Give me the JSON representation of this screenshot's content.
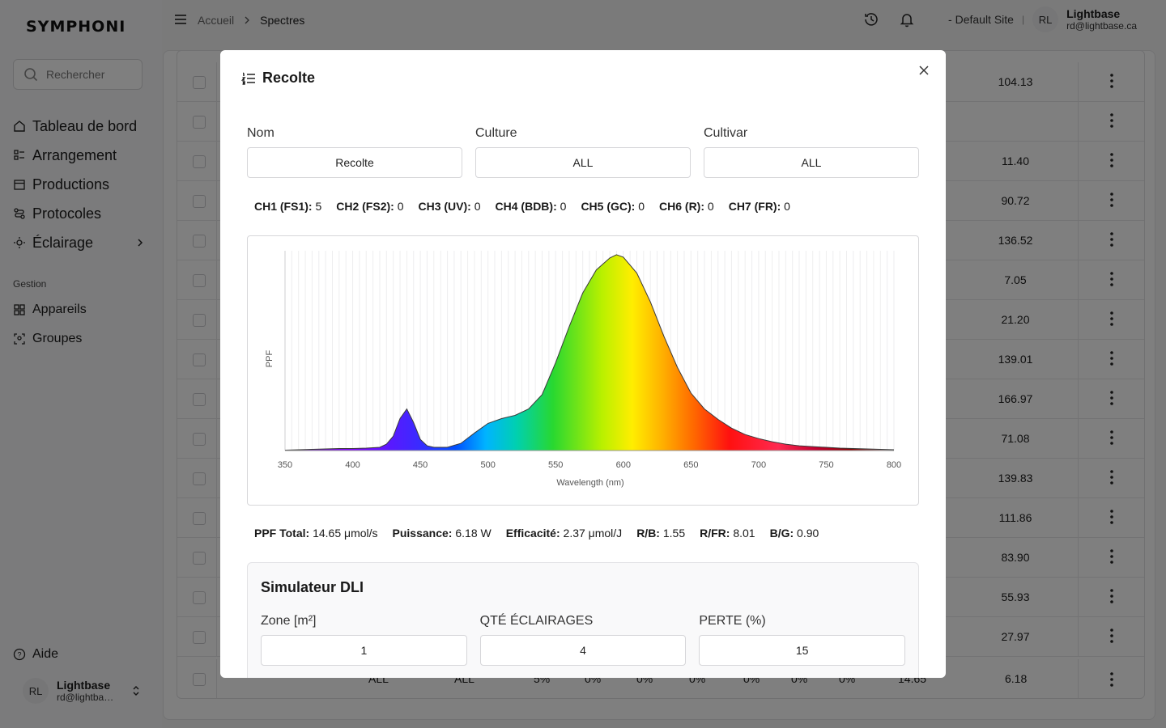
{
  "app": {
    "logo_text": "SYMPHONI"
  },
  "search": {
    "placeholder": "Rechercher"
  },
  "sidebar": {
    "items": [
      {
        "label": "Tableau de bord",
        "icon": "home-icon"
      },
      {
        "label": "Arrangement",
        "icon": "list-icon"
      },
      {
        "label": "Productions",
        "icon": "calendar-icon"
      },
      {
        "label": "Protocoles",
        "icon": "route-icon"
      },
      {
        "label": "Éclairage",
        "icon": "sun-icon"
      }
    ],
    "section_label": "Gestion",
    "section_items": [
      {
        "label": "Appareils",
        "icon": "grid-icon"
      },
      {
        "label": "Groupes",
        "icon": "group-icon"
      }
    ],
    "help_label": "Aide",
    "user": {
      "initials": "RL",
      "name": "Lightbase",
      "email": "rd@lightbase.ca"
    }
  },
  "header": {
    "breadcrumb": [
      "Accueil",
      "Spectres"
    ],
    "site": "- Default Site",
    "user": {
      "initials": "RL",
      "name": "Lightbase",
      "email": "rd@lightbase.ca"
    }
  },
  "table": {
    "row_values": [
      "104.13",
      "",
      "11.40",
      "90.72",
      "136.52",
      "7.05",
      "21.20",
      "139.01",
      "166.97",
      "71.08",
      "139.83",
      "111.86",
      "83.90",
      "55.93",
      "27.97"
    ],
    "last_row": {
      "culture": "ALL",
      "cultivar": "ALL",
      "ch1": "5%",
      "ch2": "0%",
      "ch3": "0%",
      "ch4": "0%",
      "ch5": "0%",
      "ch6": "0%",
      "ch7": "0%",
      "ppf": "14.65",
      "power": "6.18"
    }
  },
  "modal": {
    "title": "Recolte",
    "fields": [
      {
        "label": "Nom",
        "value": "Recolte"
      },
      {
        "label": "Culture",
        "value": "ALL"
      },
      {
        "label": "Cultivar",
        "value": "ALL"
      }
    ],
    "channels": [
      {
        "label": "CH1 (FS1):",
        "value": "5"
      },
      {
        "label": "CH2 (FS2):",
        "value": "0"
      },
      {
        "label": "CH3 (UV):",
        "value": "0"
      },
      {
        "label": "CH4 (BDB):",
        "value": "0"
      },
      {
        "label": "CH5 (GC):",
        "value": "0"
      },
      {
        "label": "CH6 (R):",
        "value": "0"
      },
      {
        "label": "CH7 (FR):",
        "value": "0"
      }
    ],
    "stats": [
      {
        "label": "PPF Total:",
        "value": "14.65 μmol/s"
      },
      {
        "label": "Puissance:",
        "value": "6.18 W"
      },
      {
        "label": "Efficacité:",
        "value": "2.37 μmol/J"
      },
      {
        "label": "R/B:",
        "value": "1.55"
      },
      {
        "label": "R/FR:",
        "value": "8.01"
      },
      {
        "label": "B/G:",
        "value": "0.90"
      }
    ],
    "dli": {
      "title": "Simulateur DLI",
      "fields": [
        {
          "label": "Zone [m²]",
          "value": "1"
        },
        {
          "label": "QTÉ ÉCLAIRAGES",
          "value": "4"
        },
        {
          "label": "PERTE (%)",
          "value": "15"
        }
      ]
    }
  },
  "chart_data": {
    "type": "area",
    "xlabel": "Wavelength (nm)",
    "ylabel": "PPF",
    "xlim": [
      350,
      800
    ],
    "x_ticks": [
      "350",
      "400",
      "450",
      "500",
      "550",
      "600",
      "650",
      "700",
      "750",
      "800"
    ],
    "x": [
      350,
      360,
      370,
      380,
      390,
      400,
      410,
      420,
      425,
      430,
      435,
      440,
      445,
      450,
      455,
      460,
      470,
      480,
      490,
      500,
      510,
      520,
      530,
      540,
      550,
      560,
      570,
      580,
      590,
      595,
      600,
      610,
      620,
      630,
      640,
      650,
      660,
      670,
      680,
      690,
      700,
      710,
      720,
      730,
      740,
      750,
      760,
      770,
      780,
      790,
      800
    ],
    "values": [
      0.5,
      1,
      1.5,
      2,
      2.5,
      2.5,
      3,
      4,
      8,
      18,
      40,
      52,
      35,
      14,
      6,
      4,
      4,
      9,
      22,
      34,
      40,
      44,
      52,
      70,
      110,
      155,
      197,
      226,
      241,
      245,
      242,
      222,
      186,
      143,
      104,
      72,
      52,
      39,
      28,
      20,
      15,
      11,
      8,
      6,
      5,
      4,
      3,
      2.5,
      2,
      1.5,
      1
    ],
    "ylim": [
      0,
      250
    ],
    "grid": true
  },
  "colors": {
    "accent": "#1a1a1a",
    "overlay": "rgba(0,0,0,0.5)"
  }
}
